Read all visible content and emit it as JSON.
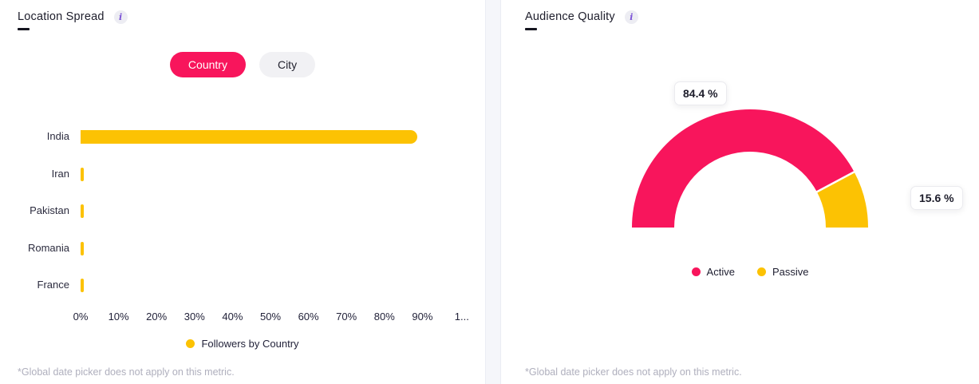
{
  "left_panel": {
    "title": "Location Spread",
    "info_icon_glyph": "i",
    "toggle": {
      "country_label": "Country",
      "city_label": "City"
    },
    "footnote": "*Global date picker does not apply on this metric."
  },
  "right_panel": {
    "title": "Audience Quality",
    "info_icon_glyph": "i",
    "footnote": "*Global date picker does not apply on this metric."
  },
  "colors": {
    "accent_pink": "#F8155C",
    "accent_yellow": "#FCC203",
    "title_text": "#1D1D2B",
    "footnote_text": "#AFAFBD",
    "gutter_bg": "#F5F6FA"
  },
  "chart_data": [
    {
      "type": "bar",
      "orientation": "horizontal",
      "title": "Location Spread — Followers by Country",
      "categories": [
        "India",
        "Iran",
        "Pakistan",
        "Romania",
        "France"
      ],
      "values": [
        88.7,
        0.7,
        0.7,
        0.6,
        0.6
      ],
      "xlim": [
        0,
        100
      ],
      "x_ticks": [
        "0%",
        "10%",
        "20%",
        "30%",
        "40%",
        "50%",
        "60%",
        "70%",
        "80%",
        "90%",
        "1..."
      ],
      "grid": false,
      "bar_color": "#FCC203",
      "legend_position": "bottom",
      "legend": [
        {
          "label": "Followers by Country",
          "color": "#FCC203"
        }
      ]
    },
    {
      "type": "gauge",
      "title": "Audience Quality",
      "span_degrees": 180,
      "legend_position": "bottom",
      "series": [
        {
          "name": "Active",
          "value": 84.4,
          "display": "84.4 %",
          "color": "#F8155C"
        },
        {
          "name": "Passive",
          "value": 15.6,
          "display": "15.6 %",
          "color": "#FCC203"
        }
      ]
    }
  ]
}
